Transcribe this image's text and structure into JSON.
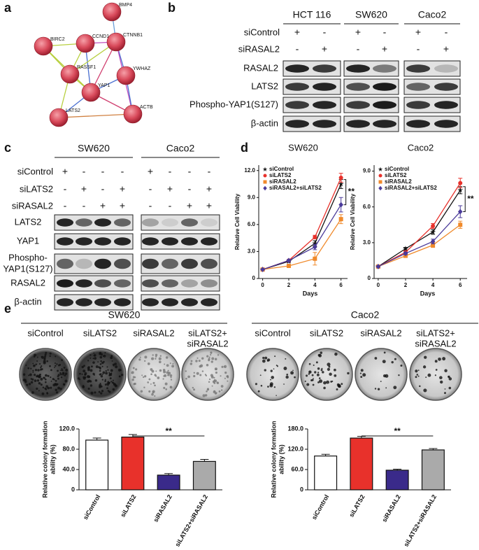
{
  "panel_labels": [
    "a",
    "b",
    "c",
    "d",
    "e"
  ],
  "network": {
    "nodes": [
      "BMP4",
      "BIRC2",
      "CCND1",
      "CTNNB1",
      "RASSF1",
      "YWHAZ",
      "YAP1",
      "ACTB",
      "LATS2"
    ]
  },
  "blot_b": {
    "cell_lines": [
      "HCT 116",
      "SW620",
      "Caco2"
    ],
    "conditions": [
      {
        "label": "siControl",
        "signs": [
          "+",
          "-",
          "+",
          "-",
          "+",
          "-"
        ]
      },
      {
        "label": "siRASAL2",
        "signs": [
          "-",
          "+",
          "-",
          "+",
          "-",
          "+"
        ]
      }
    ],
    "proteins": [
      [
        "RASAL2"
      ],
      [
        "LATS2"
      ],
      [
        "Phospho-YAP1(S127)"
      ],
      [
        "β-actin"
      ]
    ]
  },
  "blot_c": {
    "cell_lines": [
      "SW620",
      "Caco2"
    ],
    "conditions": [
      {
        "label": "siControl",
        "signs": [
          "+",
          "-",
          "-",
          "-",
          "+",
          "-",
          "-",
          "-"
        ]
      },
      {
        "label": "siLATS2",
        "signs": [
          "-",
          "+",
          "-",
          "+",
          "-",
          "+",
          "-",
          "+"
        ]
      },
      {
        "label": "siRASAL2",
        "signs": [
          "-",
          "-",
          "+",
          "+",
          "-",
          "-",
          "+",
          "+"
        ]
      }
    ],
    "proteins": [
      [
        "LATS2"
      ],
      [
        "YAP1"
      ],
      [
        "Phospho-",
        "YAP1(S127)"
      ],
      [
        "RASAL2"
      ],
      [
        "β-actin"
      ]
    ]
  },
  "colony": {
    "groups": [
      {
        "cell_line": "SW620",
        "conditions": [
          [
            "siControl"
          ],
          [
            "siLATS2"
          ],
          [
            "siRASAL2"
          ],
          [
            "siLATS2+",
            "siRASAL2"
          ]
        ]
      },
      {
        "cell_line": "Caco2",
        "conditions": [
          [
            "siControl"
          ],
          [
            "siLATS2"
          ],
          [
            "siRASAL2"
          ],
          [
            "siLATS2+",
            "siRASAL2"
          ]
        ]
      }
    ]
  },
  "chart_data": [
    {
      "type": "line",
      "title": "SW620",
      "x_label": "Days",
      "y_label": "Relative Cell Viability",
      "x": [
        0,
        2,
        4,
        6
      ],
      "xlim": [
        -0.3,
        6.5
      ],
      "xticks": [
        0,
        2,
        4,
        6
      ],
      "ylim": [
        0,
        12.6
      ],
      "yticks": [
        0,
        {
          "value": 3,
          "label": "3.0"
        },
        {
          "value": 6,
          "label": "6.0"
        },
        {
          "value": 9,
          "label": "9.0"
        },
        {
          "value": 12,
          "label": "12.0"
        }
      ],
      "annotation": "**",
      "series": [
        {
          "name": "siControl",
          "color": "#111111",
          "marker": "star",
          "values": [
            1,
            1.9,
            3.9,
            10.5
          ],
          "errors": [
            0.05,
            0.1,
            0.3,
            0.5
          ]
        },
        {
          "name": "siLATS2",
          "color": "#e8312b",
          "marker": "circle",
          "values": [
            1,
            2.0,
            4.6,
            11.2
          ],
          "errors": [
            0.05,
            0.1,
            0.2,
            0.5
          ]
        },
        {
          "name": "siRASAL2",
          "color": "#f08a2b",
          "marker": "square",
          "values": [
            1,
            1.4,
            2.2,
            6.6
          ],
          "errors": [
            0.05,
            0.1,
            0.7,
            0.5
          ]
        },
        {
          "name": "siRASAL2+siLATS2",
          "color": "#4a3a9a",
          "marker": "diamond",
          "values": [
            1,
            2.0,
            3.5,
            8.2
          ],
          "errors": [
            0.05,
            0.1,
            0.3,
            0.8
          ]
        }
      ]
    },
    {
      "type": "line",
      "title": "Caco2",
      "x_label": "Days",
      "y_label": "Relative Cell Viability",
      "x": [
        0,
        2,
        4,
        6
      ],
      "xlim": [
        -0.3,
        6.5
      ],
      "xticks": [
        0,
        2,
        4,
        6
      ],
      "ylim": [
        0,
        9.5
      ],
      "yticks": [
        0,
        {
          "value": 3,
          "label": "3.0"
        },
        {
          "value": 6,
          "label": "6.0"
        },
        {
          "value": 9,
          "label": "9.0"
        }
      ],
      "annotation": "**",
      "series": [
        {
          "name": "siControl",
          "color": "#111111",
          "marker": "star",
          "values": [
            1,
            2.5,
            3.9,
            7.4
          ],
          "errors": [
            0.05,
            0.1,
            0.2,
            0.3
          ]
        },
        {
          "name": "siLATS2",
          "color": "#e8312b",
          "marker": "circle",
          "values": [
            1,
            2.2,
            4.4,
            8.0
          ],
          "errors": [
            0.05,
            0.1,
            0.2,
            0.4
          ]
        },
        {
          "name": "siRASAL2",
          "color": "#f08a2b",
          "marker": "square",
          "values": [
            1,
            1.9,
            2.8,
            4.5
          ],
          "errors": [
            0.05,
            0.1,
            0.2,
            0.3
          ]
        },
        {
          "name": "siRASAL2+siLATS2",
          "color": "#4a3a9a",
          "marker": "diamond",
          "values": [
            1,
            2.1,
            3.1,
            5.6
          ],
          "errors": [
            0.05,
            0.1,
            0.2,
            0.5
          ]
        }
      ]
    },
    {
      "type": "bar",
      "y_label": [
        "Relative colony formation",
        "ability (%)"
      ],
      "categories": [
        "siControl",
        "siLATS2",
        "siRASAL2",
        "siLATS2+siRASAL2"
      ],
      "values": [
        98,
        104,
        29,
        56
      ],
      "errors": [
        4,
        5,
        3,
        4
      ],
      "colors": [
        "#ffffff",
        "#e8312b",
        "#3a2a8a",
        "#aaaaaa"
      ],
      "ylim": [
        0,
        120
      ],
      "yticks": [
        0,
        {
          "value": 40,
          "label": "40.0"
        },
        {
          "value": 80,
          "label": "80.0"
        },
        {
          "value": 120,
          "label": "120.0"
        }
      ],
      "annotation": "**"
    },
    {
      "type": "bar",
      "y_label": [
        "Relative colony formation",
        "ability (%)"
      ],
      "categories": [
        "siControl",
        "siLATS2",
        "siRASAL2",
        "siLATS2+siRASAL2"
      ],
      "values": [
        100,
        153,
        58,
        118
      ],
      "errors": [
        5,
        5,
        3,
        4
      ],
      "colors": [
        "#ffffff",
        "#e8312b",
        "#3a2a8a",
        "#aaaaaa"
      ],
      "ylim": [
        0,
        180
      ],
      "yticks": [
        0,
        {
          "value": 60,
          "label": "60.0"
        },
        {
          "value": 120,
          "label": "120.0"
        },
        {
          "value": 180,
          "label": "180.0"
        }
      ],
      "annotation": "**"
    }
  ]
}
